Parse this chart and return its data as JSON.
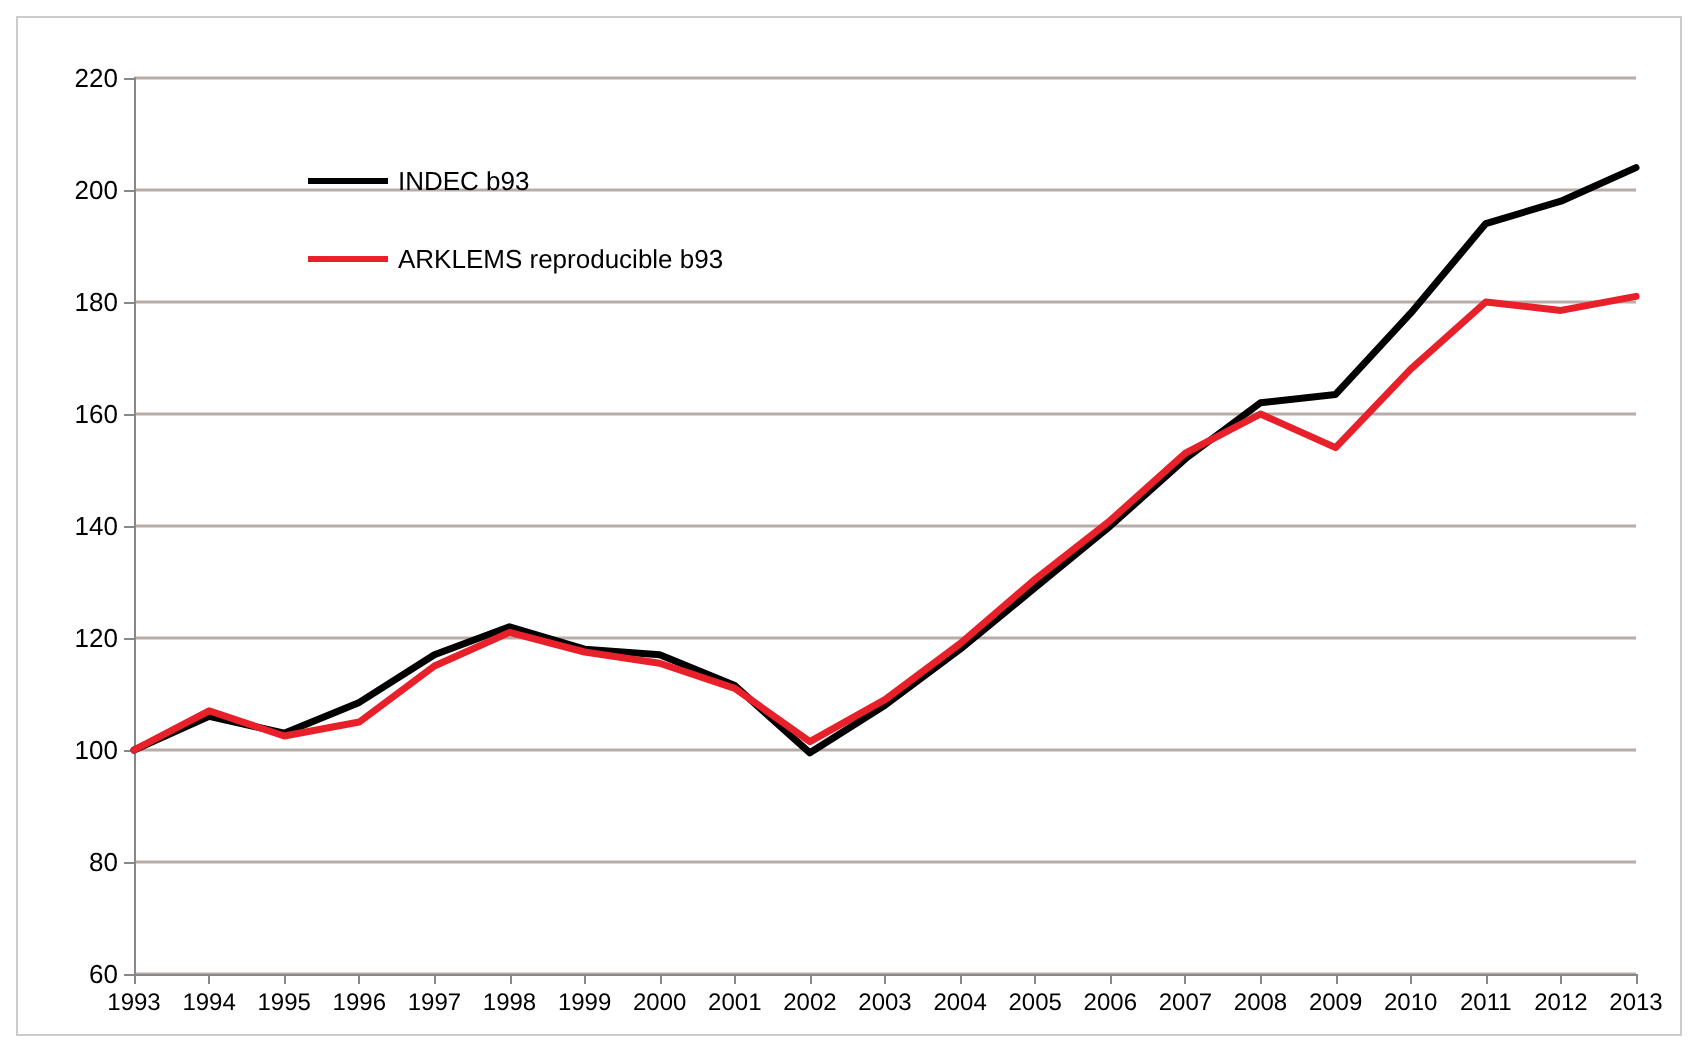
{
  "chart_data": {
    "type": "line",
    "categories": [
      "1993",
      "1994",
      "1995",
      "1996",
      "1997",
      "1998",
      "1999",
      "2000",
      "2001",
      "2002",
      "2003",
      "2004",
      "2005",
      "2006",
      "2007",
      "2008",
      "2009",
      "2010",
      "2011",
      "2012",
      "2013"
    ],
    "series": [
      {
        "name": "INDEC b93",
        "color": "#000000",
        "values": [
          100,
          106,
          103,
          108.5,
          117,
          122,
          118,
          117,
          111.5,
          99.5,
          108,
          118,
          129,
          140,
          152,
          162,
          163.5,
          178,
          194,
          198,
          204
        ]
      },
      {
        "name": "ARKLEMS reproducible b93",
        "color": "#e8202a",
        "values": [
          100,
          107,
          102.5,
          105,
          115,
          121,
          117.5,
          115.5,
          111,
          101.5,
          109,
          119,
          130.5,
          141,
          153,
          160,
          154,
          168,
          180,
          178.5,
          181
        ]
      }
    ],
    "ylim": [
      60,
      220
    ],
    "yticks": [
      60,
      80,
      100,
      120,
      140,
      160,
      180,
      200,
      220
    ],
    "grid": "y",
    "legend": "top left",
    "marker": "none",
    "line_style": "solid"
  }
}
